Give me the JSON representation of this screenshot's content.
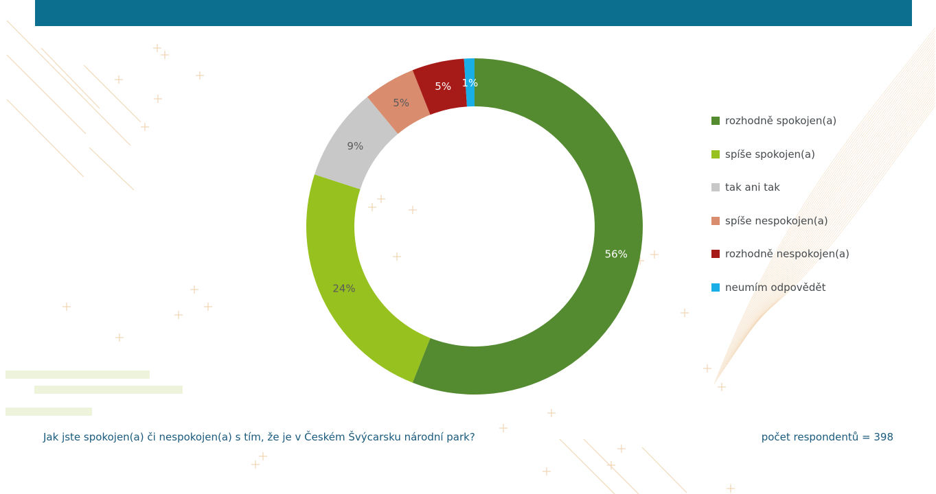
{
  "chart_data": {
    "type": "pie",
    "categories": [
      "rozhodně spokojen(a)",
      "spíše spokojen(a)",
      "tak ani tak",
      "spíše nespokojen(a)",
      "rozhodně nespokojen(a)",
      "neumím odpovědět"
    ],
    "values": [
      56,
      24,
      9,
      5,
      5,
      1
    ],
    "data_labels": [
      "56%",
      "24%",
      "9%",
      "5%",
      "5%",
      "1%"
    ],
    "colors": [
      "#548a30",
      "#96c11f",
      "#c8c8c8",
      "#d98c6e",
      "#a61a18",
      "#1aaee7"
    ],
    "label_colors": [
      "#ffffff",
      "#5a5a5a",
      "#5a5a5a",
      "#5a5a5a",
      "#ffffff",
      "#ffffff"
    ],
    "donut": true,
    "legend_position": "right"
  },
  "footer": {
    "question": "Jak jste spokojen(a) či nespokojen(a) s tím, že je v Českém Švýcarsku národní park?",
    "respondents": "počet respondentů = 398"
  },
  "colors": {
    "header": "#0c6f90",
    "text": "#1a5a7c",
    "decor": "#f2d8b8"
  }
}
